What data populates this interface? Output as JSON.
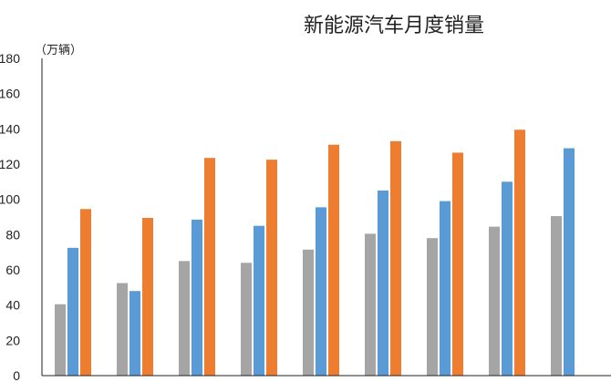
{
  "chart_data": {
    "type": "bar",
    "title": "新能源汽车月度销量",
    "ylabel": "（万辆）",
    "xlabel": "",
    "ylim": [
      0,
      180
    ],
    "yticks": [
      0,
      20,
      40,
      60,
      80,
      100,
      120,
      140,
      160,
      180
    ],
    "categories": [
      "",
      "",
      "",
      "",
      "",
      "",
      "",
      "",
      ""
    ],
    "grid": false,
    "legend": "none",
    "series": [
      {
        "color": "#a5a5a5",
        "values": [
          40.5,
          52.5,
          65,
          64,
          71.5,
          80.5,
          78,
          84.5,
          90.5
        ]
      },
      {
        "color": "#5b9bd5",
        "values": [
          72.5,
          48,
          88.5,
          85,
          95.5,
          105,
          99,
          110,
          129
        ]
      },
      {
        "color": "#ed7d31",
        "values": [
          94.5,
          89.5,
          123.5,
          122.5,
          131,
          133,
          126.5,
          139.5,
          null
        ]
      }
    ]
  }
}
